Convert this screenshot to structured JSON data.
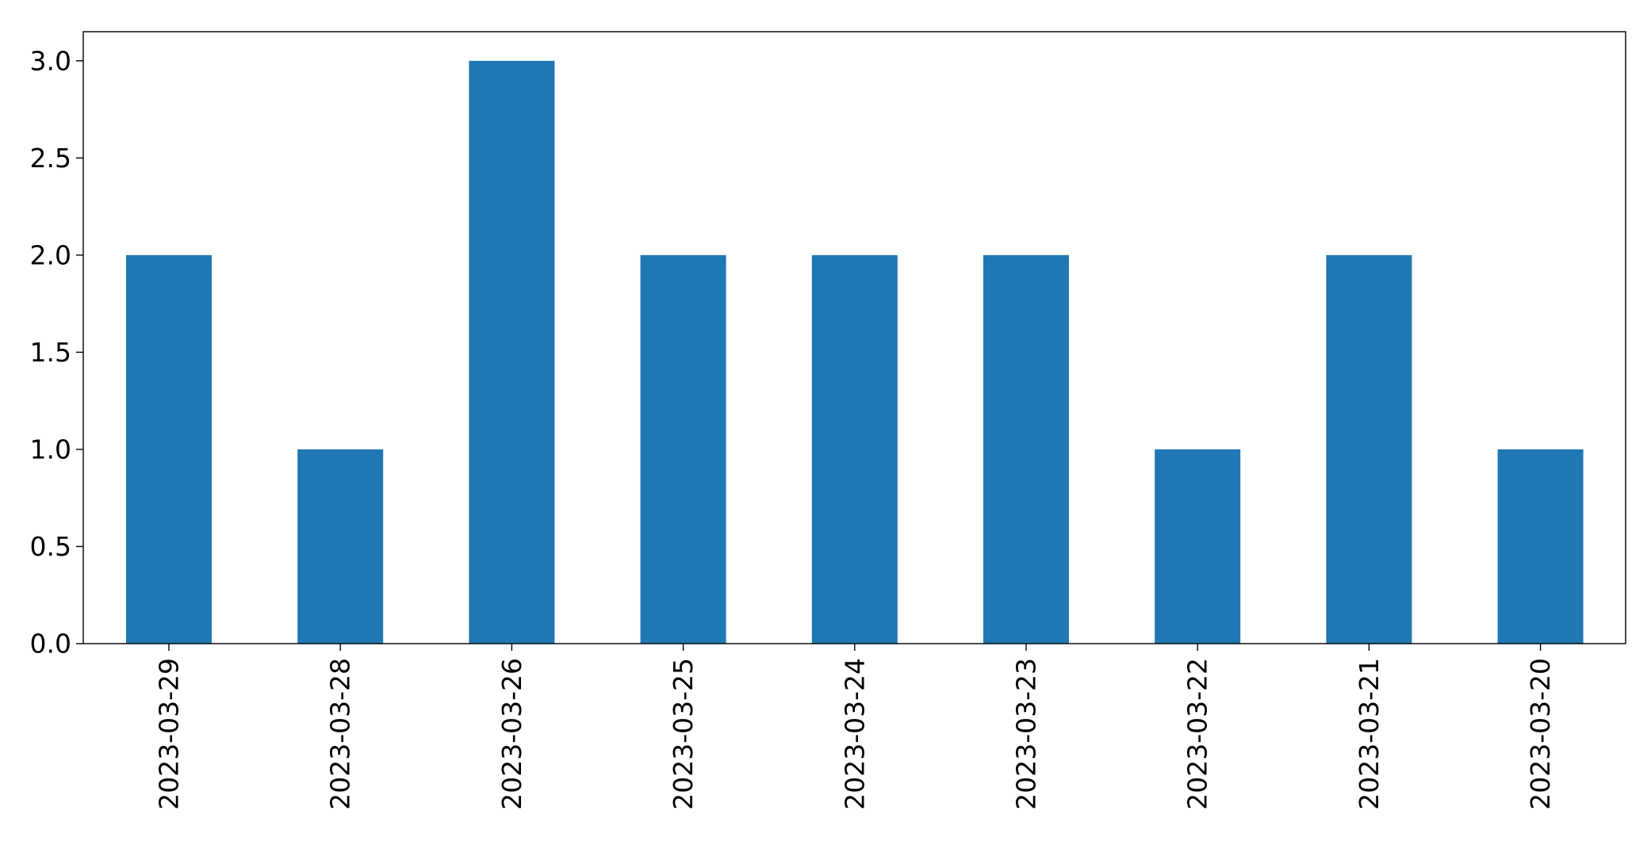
{
  "chart_data": {
    "type": "bar",
    "categories": [
      "2023-03-29",
      "2023-03-28",
      "2023-03-26",
      "2023-03-25",
      "2023-03-24",
      "2023-03-23",
      "2023-03-22",
      "2023-03-21",
      "2023-03-20"
    ],
    "values": [
      2,
      1,
      3,
      2,
      2,
      2,
      1,
      2,
      1
    ],
    "title": "",
    "xlabel": "",
    "ylabel": "",
    "ylim": [
      0,
      3.15
    ],
    "yticks": [
      "0.0",
      "0.5",
      "1.0",
      "1.5",
      "2.0",
      "2.5",
      "3.0"
    ],
    "bar_color": "#1f77b4",
    "grid": false,
    "legend": "none",
    "xtick_rotation": "vertical"
  }
}
